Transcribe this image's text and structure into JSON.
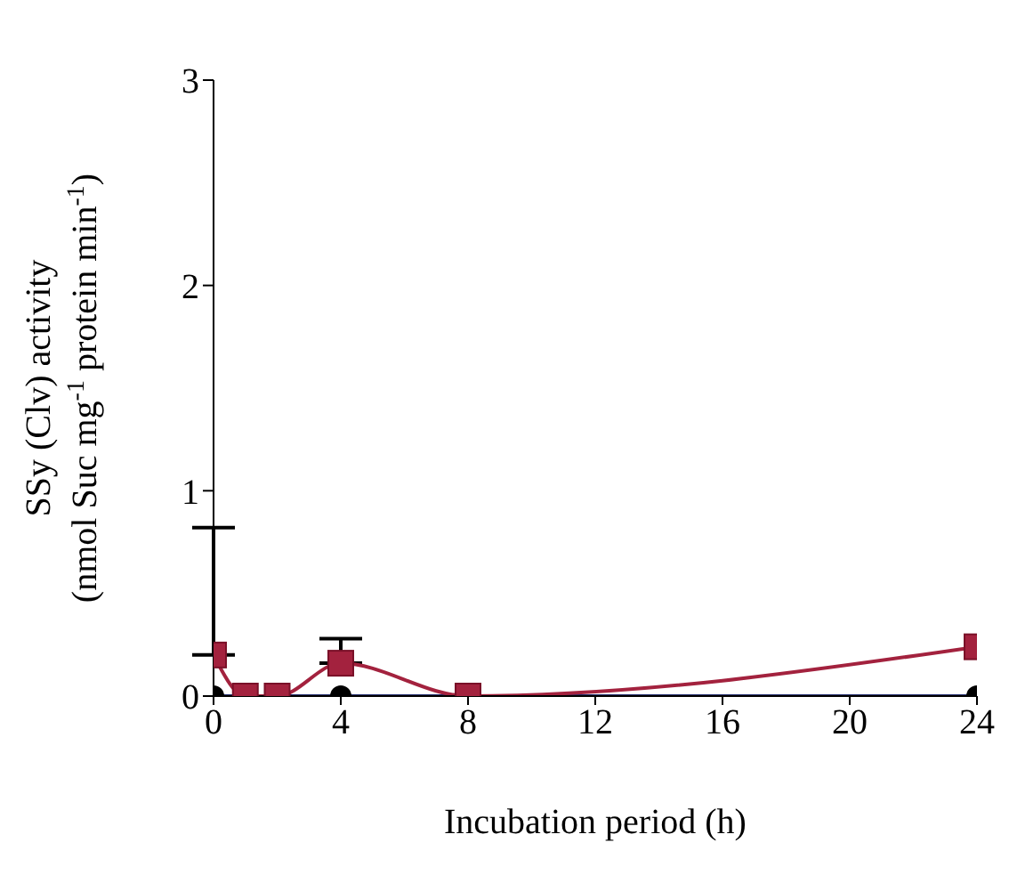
{
  "chart_data": {
    "type": "line",
    "xlabel": "Incubation period (h)",
    "ylabel": "SSy (Clv) activity\n(nmol Suc mg$^{-1}$ protein min$^{-1}$)",
    "xlim": [
      0,
      24
    ],
    "xticks": [
      0,
      4,
      8,
      12,
      16,
      20,
      24
    ],
    "ylim": [
      0,
      3
    ],
    "yticks": [
      0,
      1,
      2,
      3
    ],
    "series": [
      {
        "color": "#1f2a6b",
        "marker": "circle",
        "x": [
          0,
          1,
          2,
          4,
          8,
          24
        ],
        "values": [
          0,
          0,
          0,
          0,
          0,
          0
        ]
      },
      {
        "color": "#a3223e",
        "marker": "square",
        "x": [
          0,
          1,
          2,
          4,
          8,
          24
        ],
        "values": [
          0.2,
          0,
          0,
          0.16,
          0,
          0.24
        ],
        "errors": [
          [
            0.2,
            0.82
          ],
          null,
          null,
          [
            0.16,
            0.28
          ],
          null,
          null
        ]
      }
    ]
  }
}
